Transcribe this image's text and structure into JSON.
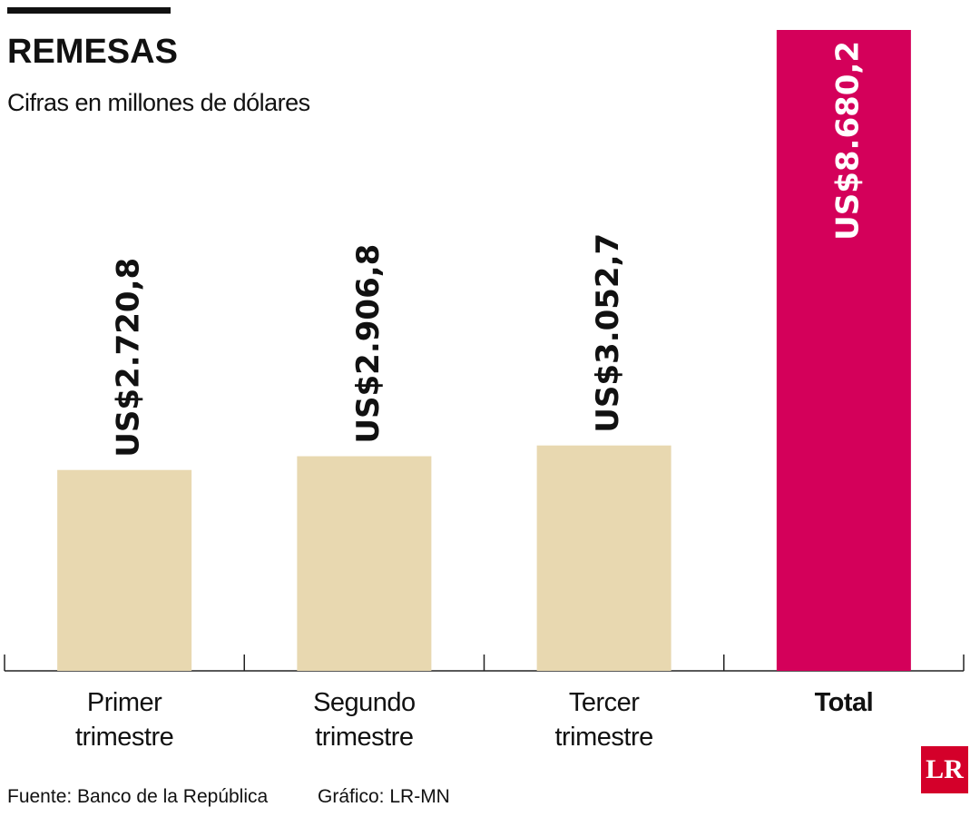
{
  "chart_data": {
    "type": "bar",
    "title": "REMESAS",
    "subtitle": "Cifras en millones de dólares",
    "categories": [
      "Primer trimestre",
      "Segundo trimestre",
      "Tercer trimestre",
      "Total"
    ],
    "values": [
      2720.8,
      2906.8,
      3052.7,
      8680.2
    ],
    "value_labels": [
      "US$2.720,8",
      "US$2.906,8",
      "US$3.052,7",
      "US$8.680,2"
    ],
    "colors": [
      "#e8d8b0",
      "#e8d8b0",
      "#e8d8b0",
      "#d4005a"
    ],
    "source": "Fuente: Banco de la República",
    "credit": "Gráfico: LR-MN",
    "logo": "LR"
  }
}
